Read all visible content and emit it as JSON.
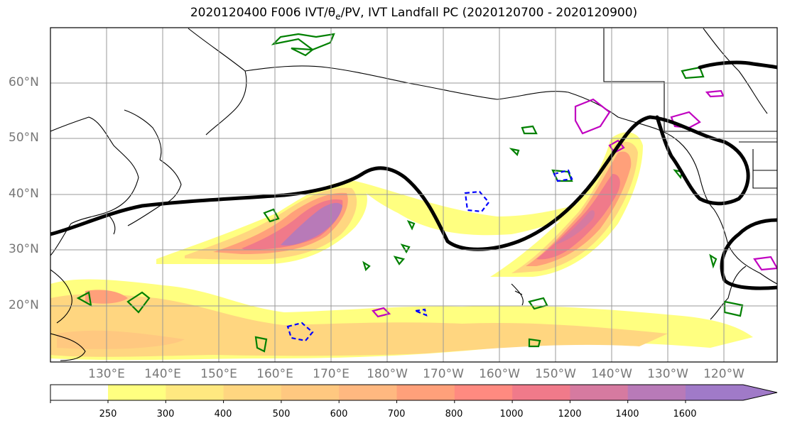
{
  "title": "2020120400 F006 IVT/θₑ/PV, IVT Landfall PC (2020120700 - 2020120900)",
  "title_parts": {
    "pre": "2020120400 F006 IVT/",
    "theta": "θ",
    "sub": "e",
    "post": "/PV, IVT Landfall PC (2020120700 - 2020120900)"
  },
  "lat_labels": [
    "60°N",
    "50°N",
    "40°N",
    "30°N",
    "20°N"
  ],
  "lon_labels": [
    "130°E",
    "140°E",
    "150°E",
    "160°E",
    "170°E",
    "180°W",
    "170°W",
    "160°W",
    "150°W",
    "140°W",
    "130°W",
    "120°W"
  ],
  "colorbar": {
    "levels": [
      "250",
      "300",
      "400",
      "500",
      "600",
      "700",
      "800",
      "1000",
      "1200",
      "1400",
      "1600"
    ],
    "colors": [
      "#ffff80",
      "#ffe880",
      "#ffd680",
      "#ffc880",
      "#ffb880",
      "#ffa07a",
      "#ff8a80",
      "#f07a8a",
      "#d67aa0",
      "#b87ab8",
      "#a07ac8"
    ]
  },
  "colors": {
    "pv_contour": "#008000",
    "theta_e_cold": "#0000ff",
    "theta_e_warm": "#c000c0",
    "landfall_pc": "#000000"
  }
}
